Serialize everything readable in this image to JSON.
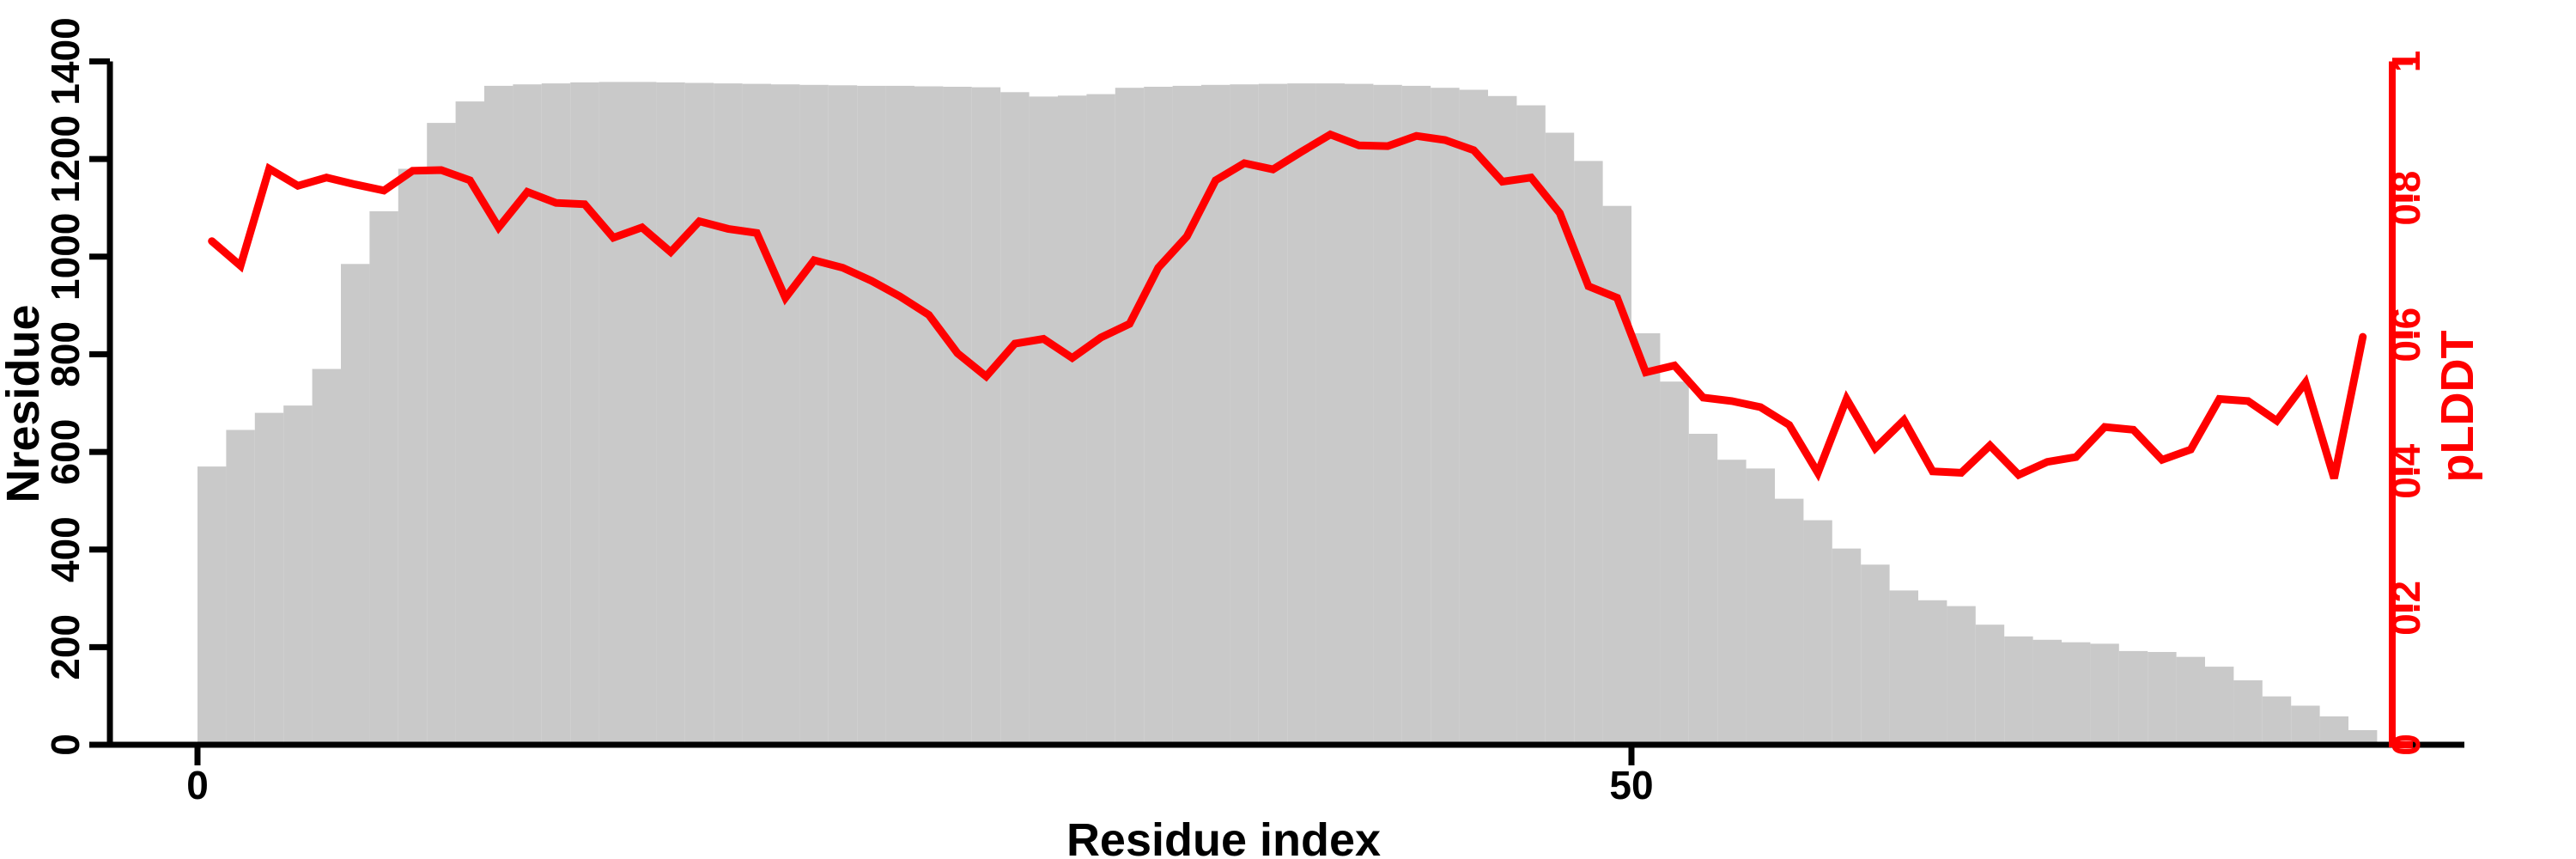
{
  "chart_data": {
    "type": "bar",
    "title": "",
    "xlabel": "Residue index",
    "ylabel_left": "Nresidue",
    "ylabel_right": "pLDDT",
    "x_start": 1,
    "x_step": 1,
    "n_points": 76,
    "xlim": [
      0,
      76.5
    ],
    "ylim_left": [
      0,
      1400
    ],
    "ylim_right": [
      0,
      1
    ],
    "grid": false,
    "legend": "none",
    "x_ticks": [
      {
        "value": 0,
        "label": "0"
      },
      {
        "value": 50,
        "label": "50"
      }
    ],
    "left_ticks": [
      {
        "value": 0,
        "label": "0"
      },
      {
        "value": 200,
        "label": "200"
      },
      {
        "value": 400,
        "label": "400"
      },
      {
        "value": 600,
        "label": "600"
      },
      {
        "value": 800,
        "label": "800"
      },
      {
        "value": 1000,
        "label": "1000"
      },
      {
        "value": 1200,
        "label": "1200"
      },
      {
        "value": 1400,
        "label": "1400"
      }
    ],
    "right_ticks": [
      {
        "value": 0,
        "label": "0"
      },
      {
        "value": 0.2,
        "label": "0.2"
      },
      {
        "value": 0.4,
        "label": "0.4"
      },
      {
        "value": 0.6,
        "label": "0.6"
      },
      {
        "value": 0.8,
        "label": "0.8"
      },
      {
        "value": 1,
        "label": "1"
      }
    ],
    "series": [
      {
        "name": "Nresidue",
        "type": "bar",
        "axis": "left",
        "color": "#c9c9c9",
        "values": [
          570,
          645,
          680,
          695,
          770,
          985,
          1093,
          1180,
          1274,
          1318,
          1350,
          1353,
          1355,
          1357,
          1358,
          1358,
          1357,
          1356,
          1355,
          1354,
          1353,
          1352,
          1351,
          1350,
          1350,
          1349,
          1348,
          1347,
          1337,
          1328,
          1330,
          1333,
          1346,
          1348,
          1350,
          1352,
          1353,
          1354,
          1355,
          1355,
          1354,
          1352,
          1350,
          1346,
          1342,
          1329,
          1310,
          1254,
          1196,
          1104,
          843,
          744,
          637,
          584,
          566,
          504,
          460,
          402,
          369,
          316,
          296,
          284,
          246,
          222,
          215,
          210,
          207,
          192,
          190,
          180,
          160,
          132,
          99,
          80,
          58,
          30
        ]
      },
      {
        "name": "pLDDT",
        "type": "line",
        "axis": "right",
        "color": "#ff0000",
        "values": [
          0.737,
          0.701,
          0.843,
          0.818,
          0.83,
          0.82,
          0.811,
          0.84,
          0.841,
          0.826,
          0.757,
          0.809,
          0.793,
          0.791,
          0.742,
          0.757,
          0.721,
          0.766,
          0.755,
          0.749,
          0.654,
          0.709,
          0.698,
          0.679,
          0.656,
          0.629,
          0.573,
          0.539,
          0.587,
          0.594,
          0.566,
          0.596,
          0.616,
          0.698,
          0.744,
          0.826,
          0.851,
          0.842,
          0.868,
          0.893,
          0.877,
          0.876,
          0.891,
          0.885,
          0.87,
          0.824,
          0.83,
          0.778,
          0.671,
          0.654,
          0.545,
          0.555,
          0.508,
          0.503,
          0.494,
          0.468,
          0.398,
          0.506,
          0.434,
          0.475,
          0.4,
          0.398,
          0.438,
          0.395,
          0.414,
          0.421,
          0.465,
          0.461,
          0.417,
          0.432,
          0.506,
          0.503,
          0.474,
          0.53,
          0.39,
          0.597
        ]
      }
    ],
    "axis_colors": {
      "left": "#000000",
      "right": "#ff0000",
      "bottom": "#000000"
    }
  }
}
